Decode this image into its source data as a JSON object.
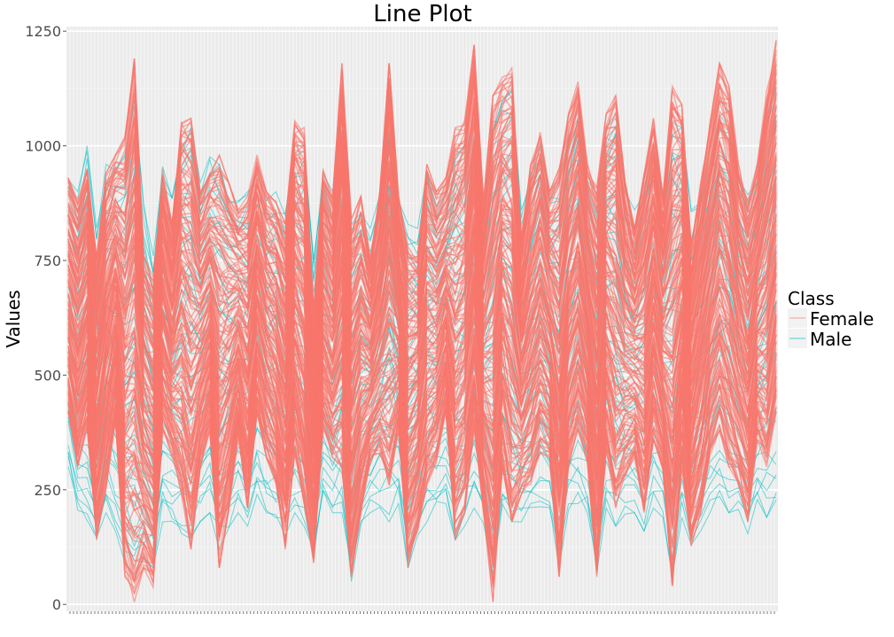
{
  "chart_data": {
    "type": "line",
    "title": "Line Plot",
    "xlabel": "",
    "ylabel": "Values",
    "ylim": [
      -15,
      1260
    ],
    "y_ticks": [
      0,
      250,
      500,
      750,
      1000,
      1250
    ],
    "y_tick_labels": [
      "0",
      "250",
      "500",
      "750",
      "1000",
      "1250"
    ],
    "grid": true,
    "legend": {
      "title": "Class",
      "position": "right",
      "entries": [
        {
          "label": "Female",
          "color": "#F8766D"
        },
        {
          "label": "Male",
          "color": "#00BFC4"
        }
      ]
    },
    "x_count": 200,
    "series": [
      {
        "name": "Female",
        "color": "#F8766D",
        "upper": [
          930,
          880,
          950,
          760,
          940,
          980,
          1020,
          1190,
          760,
          720,
          950,
          830,
          1050,
          1060,
          900,
          940,
          980,
          920,
          860,
          890,
          980,
          900,
          880,
          830,
          1060,
          1040,
          640,
          950,
          890,
          1180,
          840,
          890,
          760,
          900,
          1180,
          890,
          780,
          760,
          960,
          900,
          930,
          1040,
          1060,
          1220,
          880,
          1110,
          1150,
          1170,
          800,
          960,
          1030,
          900,
          950,
          1070,
          1140,
          960,
          910,
          1070,
          1110,
          920,
          820,
          960,
          1060,
          890,
          1130,
          1090,
          780,
          920,
          1050,
          1180,
          1140,
          960,
          880,
          960,
          1120,
          1230
        ],
        "lower": [
          420,
          300,
          380,
          140,
          250,
          400,
          60,
          5,
          80,
          30,
          380,
          320,
          240,
          120,
          300,
          380,
          80,
          200,
          360,
          210,
          420,
          320,
          260,
          120,
          330,
          210,
          90,
          380,
          320,
          300,
          60,
          200,
          310,
          330,
          260,
          380,
          80,
          160,
          260,
          310,
          420,
          140,
          200,
          380,
          200,
          5,
          300,
          180,
          240,
          260,
          330,
          320,
          60,
          300,
          380,
          310,
          60,
          330,
          210,
          280,
          320,
          200,
          360,
          280,
          40,
          300,
          120,
          200,
          320,
          380,
          300,
          260,
          180,
          360,
          300,
          420
        ]
      },
      {
        "name": "Male",
        "color": "#00BFC4",
        "upper": [
          940,
          900,
          1000,
          820,
          960,
          950,
          980,
          1100,
          870,
          760,
          960,
          900,
          1000,
          1040,
          920,
          980,
          960,
          900,
          880,
          900,
          940,
          880,
          900,
          860,
          1000,
          1000,
          760,
          940,
          900,
          1100,
          860,
          880,
          820,
          900,
          1120,
          880,
          840,
          820,
          940,
          880,
          900,
          1000,
          1000,
          1150,
          900,
          1060,
          1100,
          1120,
          860,
          940,
          1000,
          900,
          920,
          1020,
          1080,
          940,
          900,
          1040,
          1060,
          900,
          860,
          920,
          1000,
          900,
          1080,
          1040,
          860,
          900,
          1000,
          1100,
          1080,
          940,
          900,
          940,
          1080,
          1150
        ],
        "lower": [
          300,
          200,
          180,
          120,
          200,
          160,
          90,
          60,
          100,
          80,
          180,
          160,
          150,
          140,
          180,
          200,
          120,
          160,
          200,
          170,
          240,
          200,
          180,
          150,
          200,
          170,
          100,
          220,
          200,
          200,
          50,
          160,
          200,
          210,
          180,
          220,
          80,
          150,
          180,
          200,
          220,
          140,
          160,
          210,
          170,
          60,
          200,
          150,
          180,
          190,
          210,
          200,
          80,
          200,
          220,
          200,
          70,
          210,
          170,
          190,
          200,
          160,
          210,
          190,
          60,
          190,
          130,
          160,
          200,
          220,
          200,
          180,
          150,
          210,
          190,
          220
        ]
      }
    ]
  }
}
